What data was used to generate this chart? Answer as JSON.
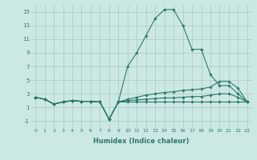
{
  "xlabel": "Humidex (Indice chaleur)",
  "xlim": [
    -0.5,
    23.5
  ],
  "ylim": [
    -2,
    16
  ],
  "yticks": [
    -1,
    1,
    3,
    5,
    7,
    9,
    11,
    13,
    15
  ],
  "xticks": [
    0,
    1,
    2,
    3,
    4,
    5,
    6,
    7,
    8,
    9,
    10,
    11,
    12,
    13,
    14,
    15,
    16,
    17,
    18,
    19,
    20,
    21,
    22,
    23
  ],
  "bg_color": "#cce8e5",
  "grid_color": "#aac8c4",
  "line_color": "#2a7a6a",
  "figsize": [
    3.2,
    2.0
  ],
  "dpi": 100,
  "series": [
    [
      2.5,
      2.2,
      1.5,
      1.8,
      2.0,
      1.9,
      1.9,
      1.8,
      -0.7,
      1.8,
      7.0,
      9.0,
      11.5,
      14.0,
      15.3,
      15.3,
      13.0,
      9.5,
      9.5,
      5.8,
      4.2,
      4.2,
      3.0,
      1.8
    ],
    [
      2.5,
      2.2,
      1.5,
      1.8,
      2.0,
      1.9,
      1.9,
      1.8,
      -0.7,
      1.8,
      2.2,
      2.5,
      2.8,
      3.0,
      3.2,
      3.3,
      3.5,
      3.6,
      3.7,
      4.0,
      4.8,
      4.8,
      3.8,
      1.8
    ],
    [
      2.5,
      2.2,
      1.5,
      1.8,
      2.0,
      1.9,
      1.9,
      1.8,
      -0.7,
      1.8,
      2.0,
      2.1,
      2.2,
      2.3,
      2.4,
      2.4,
      2.5,
      2.6,
      2.6,
      2.8,
      3.0,
      3.0,
      2.5,
      1.8
    ],
    [
      2.5,
      2.2,
      1.5,
      1.8,
      2.0,
      1.9,
      1.9,
      1.8,
      -0.7,
      1.8,
      1.8,
      1.8,
      1.8,
      1.8,
      1.8,
      1.8,
      1.8,
      1.8,
      1.8,
      1.8,
      1.8,
      1.8,
      1.8,
      1.8
    ]
  ]
}
